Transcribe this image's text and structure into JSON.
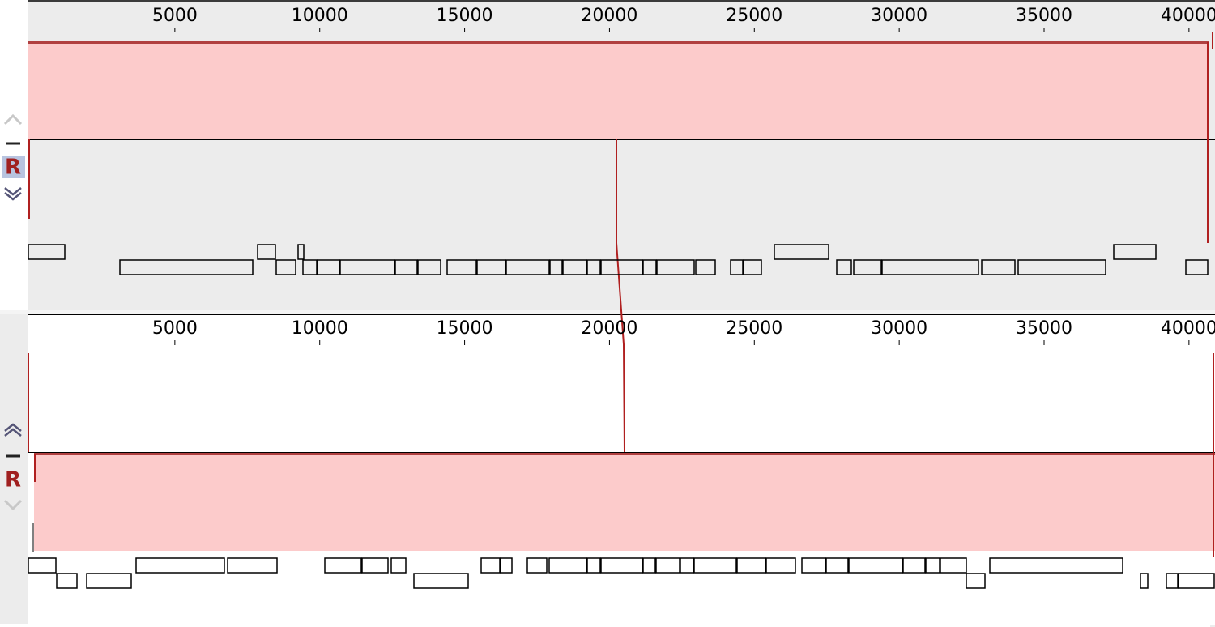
{
  "panels": [
    {
      "ticks": [
        5000,
        10000,
        15000,
        20000,
        25000,
        30000,
        35000,
        40000
      ],
      "button": "R"
    },
    {
      "ticks": [
        5000,
        10000,
        15000,
        20000,
        25000,
        30000,
        35000,
        40000
      ],
      "button": "R"
    }
  ]
}
